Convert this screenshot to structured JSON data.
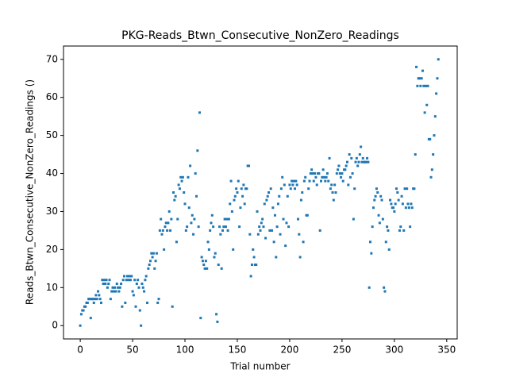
{
  "chart_data": {
    "type": "scatter",
    "title": "PKG-Reads_Btwn_Consecutive_NonZero_Readings",
    "xlabel": "Trial number",
    "ylabel": "Reads_Btwn_Consecutive_NonZero_Readings ()",
    "color": "#1f77b4",
    "xlim": [
      -16,
      360
    ],
    "ylim": [
      -3.5,
      73.5
    ],
    "xticks": [
      0,
      50,
      100,
      150,
      200,
      250,
      300,
      350
    ],
    "yticks": [
      0,
      10,
      20,
      30,
      40,
      50,
      60,
      70
    ],
    "x": [
      0,
      1,
      2,
      3,
      4,
      5,
      6,
      7,
      8,
      9,
      10,
      11,
      12,
      13,
      14,
      15,
      16,
      17,
      18,
      19,
      20,
      21,
      22,
      23,
      24,
      25,
      26,
      27,
      28,
      29,
      30,
      31,
      32,
      33,
      34,
      35,
      36,
      37,
      38,
      39,
      40,
      41,
      42,
      43,
      44,
      45,
      46,
      47,
      48,
      49,
      50,
      51,
      52,
      53,
      54,
      55,
      56,
      57,
      58,
      59,
      60,
      61,
      62,
      63,
      64,
      65,
      66,
      67,
      68,
      69,
      70,
      71,
      72,
      73,
      74,
      75,
      76,
      77,
      78,
      79,
      80,
      81,
      82,
      83,
      84,
      85,
      86,
      87,
      88,
      89,
      90,
      91,
      92,
      93,
      94,
      95,
      96,
      97,
      98,
      99,
      100,
      101,
      102,
      103,
      104,
      105,
      106,
      107,
      108,
      109,
      110,
      111,
      112,
      113,
      114,
      115,
      116,
      117,
      118,
      119,
      120,
      121,
      122,
      123,
      124,
      125,
      126,
      127,
      128,
      129,
      130,
      131,
      132,
      133,
      134,
      135,
      136,
      137,
      138,
      139,
      140,
      141,
      142,
      143,
      144,
      145,
      146,
      147,
      148,
      149,
      150,
      151,
      152,
      153,
      154,
      155,
      156,
      157,
      158,
      159,
      160,
      161,
      162,
      163,
      164,
      165,
      166,
      167,
      168,
      169,
      170,
      171,
      172,
      173,
      174,
      175,
      176,
      177,
      178,
      179,
      180,
      181,
      182,
      183,
      184,
      185,
      186,
      187,
      188,
      189,
      190,
      191,
      192,
      193,
      194,
      195,
      196,
      197,
      198,
      199,
      200,
      201,
      202,
      203,
      204,
      205,
      206,
      207,
      208,
      209,
      210,
      211,
      212,
      213,
      214,
      215,
      216,
      217,
      218,
      219,
      220,
      221,
      222,
      223,
      224,
      225,
      226,
      227,
      228,
      229,
      230,
      231,
      232,
      233,
      234,
      235,
      236,
      237,
      238,
      239,
      240,
      241,
      242,
      243,
      244,
      245,
      246,
      247,
      248,
      249,
      250,
      251,
      252,
      253,
      254,
      255,
      256,
      257,
      258,
      259,
      260,
      261,
      262,
      263,
      264,
      265,
      266,
      267,
      268,
      269,
      270,
      271,
      272,
      273,
      274,
      275,
      276,
      277,
      278,
      279,
      280,
      281,
      282,
      283,
      284,
      285,
      286,
      287,
      288,
      289,
      290,
      291,
      292,
      293,
      294,
      295,
      296,
      297,
      298,
      299,
      300,
      301,
      302,
      303,
      304,
      305,
      306,
      307,
      308,
      309,
      310,
      311,
      312,
      313,
      314,
      315,
      316,
      317,
      318,
      319,
      320,
      321,
      322,
      323,
      324,
      325,
      326,
      327,
      328,
      329,
      330,
      331,
      332,
      333,
      334,
      335,
      336,
      337,
      338,
      339,
      340,
      341,
      342
    ],
    "values": [
      0,
      3,
      4,
      4,
      5,
      5,
      6,
      6,
      7,
      7,
      2,
      7,
      7,
      6,
      7,
      8,
      7,
      9,
      8,
      7,
      6,
      12,
      11,
      12,
      11,
      12,
      10,
      11,
      12,
      7,
      9,
      10,
      9,
      10,
      9,
      11,
      10,
      9,
      10,
      11,
      5,
      12,
      13,
      6,
      12,
      13,
      12,
      13,
      12,
      13,
      9,
      8,
      12,
      5,
      11,
      12,
      10,
      4,
      0,
      11,
      10,
      9,
      12,
      13,
      6,
      15,
      16,
      17,
      19,
      18,
      19,
      15,
      17,
      19,
      6,
      7,
      25,
      28,
      24,
      25,
      20,
      26,
      27,
      25,
      27,
      30,
      25,
      28,
      5,
      35,
      33,
      34,
      22,
      28,
      37,
      36,
      39,
      38,
      39,
      35,
      32,
      25,
      26,
      39,
      31,
      42,
      27,
      29,
      24,
      28,
      40,
      34,
      46,
      26,
      56,
      2,
      18,
      17,
      16,
      15,
      17,
      15,
      22,
      20,
      25,
      27,
      29,
      26,
      18,
      19,
      3,
      1,
      16,
      26,
      24,
      15,
      25,
      26,
      28,
      26,
      28,
      25,
      28,
      32,
      38,
      30,
      20,
      33,
      34,
      36,
      35,
      38,
      26,
      31,
      36,
      34,
      37,
      32,
      36,
      36,
      42,
      42,
      24,
      13,
      16,
      20,
      18,
      16,
      16,
      30,
      24,
      26,
      25,
      27,
      28,
      26,
      32,
      23,
      33,
      34,
      35,
      25,
      36,
      25,
      31,
      22,
      29,
      18,
      26,
      32,
      34,
      24,
      36,
      39,
      28,
      37,
      21,
      27,
      34,
      26,
      37,
      36,
      38,
      37,
      38,
      36,
      38,
      37,
      28,
      24,
      18,
      33,
      35,
      22,
      38,
      39,
      29,
      29,
      36,
      38,
      40,
      41,
      40,
      38,
      40,
      39,
      37,
      40,
      40,
      25,
      38,
      39,
      41,
      39,
      38,
      39,
      40,
      38,
      44,
      36,
      37,
      35,
      33,
      37,
      35,
      40,
      41,
      42,
      40,
      39,
      40,
      38,
      41,
      41,
      42,
      43,
      37,
      45,
      39,
      44,
      40,
      28,
      36,
      43,
      44,
      42,
      43,
      45,
      47,
      43,
      44,
      43,
      43,
      43,
      44,
      43,
      10,
      22,
      19,
      26,
      31,
      33,
      34,
      36,
      35,
      29,
      27,
      34,
      33,
      28,
      10,
      9,
      22,
      26,
      25,
      20,
      33,
      32,
      31,
      31,
      30,
      32,
      36,
      35,
      33,
      25,
      26,
      34,
      32,
      25,
      36,
      31,
      36,
      32,
      31,
      26,
      32,
      31,
      36,
      36,
      45,
      68,
      63,
      65,
      65,
      63,
      65,
      67,
      63,
      56,
      63,
      58,
      63,
      49,
      49,
      39,
      41,
      45,
      50,
      55,
      61,
      65,
      70
    ]
  }
}
